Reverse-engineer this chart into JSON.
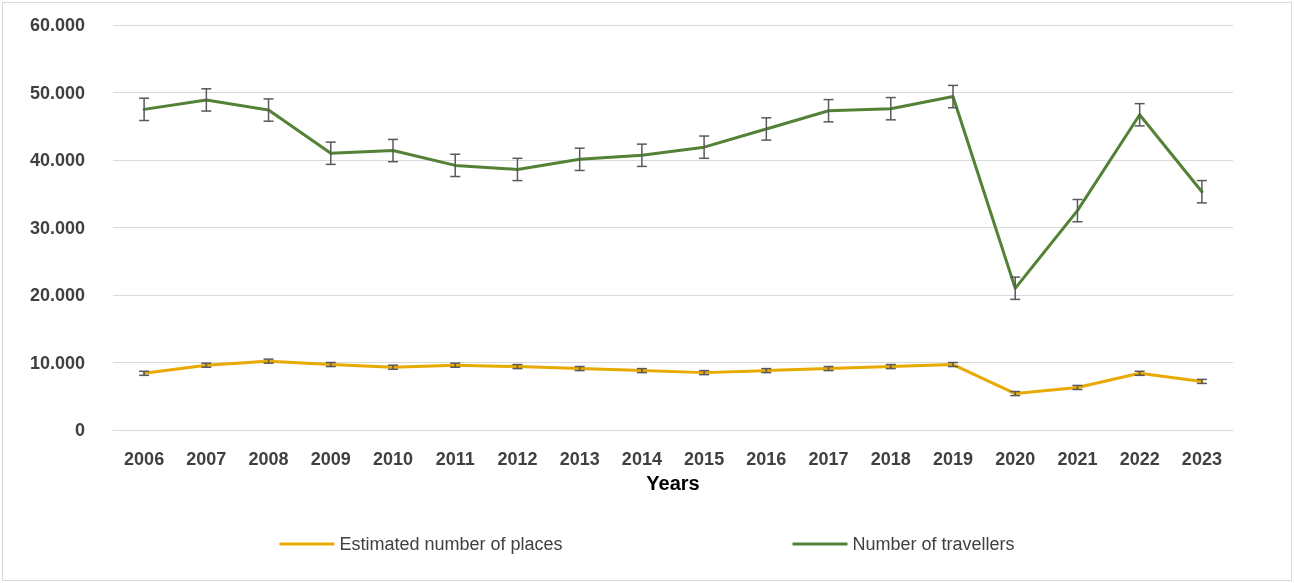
{
  "chart_data": {
    "type": "line",
    "xlabel": "Years",
    "categories": [
      "2006",
      "2007",
      "2008",
      "2009",
      "2010",
      "2011",
      "2012",
      "2013",
      "2014",
      "2015",
      "2016",
      "2017",
      "2018",
      "2019",
      "2020",
      "2021",
      "2022",
      "2023"
    ],
    "series": [
      {
        "name": "Estimated number of places",
        "color": "#e8a900",
        "values": [
          8400,
          9600,
          10200,
          9700,
          9300,
          9600,
          9400,
          9100,
          8800,
          8500,
          8800,
          9100,
          9400,
          9700,
          5400,
          6300,
          8400,
          7200
        ],
        "errors": [
          300,
          300,
          300,
          300,
          300,
          300,
          300,
          300,
          300,
          300,
          300,
          300,
          300,
          300,
          300,
          300,
          300,
          300
        ]
      },
      {
        "name": "Number of travellers",
        "color": "#538135",
        "values": [
          47500,
          48900,
          47400,
          41000,
          41400,
          39200,
          38600,
          40100,
          40700,
          41900,
          44600,
          47300,
          47600,
          49400,
          21000,
          32500,
          46700,
          35300
        ],
        "errors": [
          1650,
          1650,
          1650,
          1650,
          1650,
          1650,
          1650,
          1650,
          1650,
          1650,
          1650,
          1650,
          1650,
          1650,
          1650,
          1650,
          1650,
          1650
        ]
      }
    ],
    "ylim": [
      0,
      60000
    ],
    "yticks": [
      {
        "value": 0,
        "label": "0"
      },
      {
        "value": 10000,
        "label": "10.000"
      },
      {
        "value": 20000,
        "label": "20.000"
      },
      {
        "value": 30000,
        "label": "30.000"
      },
      {
        "value": 40000,
        "label": "40.000"
      },
      {
        "value": 50000,
        "label": "50.000"
      },
      {
        "value": 60000,
        "label": "60.000"
      }
    ],
    "grid": "y",
    "legend": "bottom",
    "marker": "none",
    "line_style": "solid"
  }
}
